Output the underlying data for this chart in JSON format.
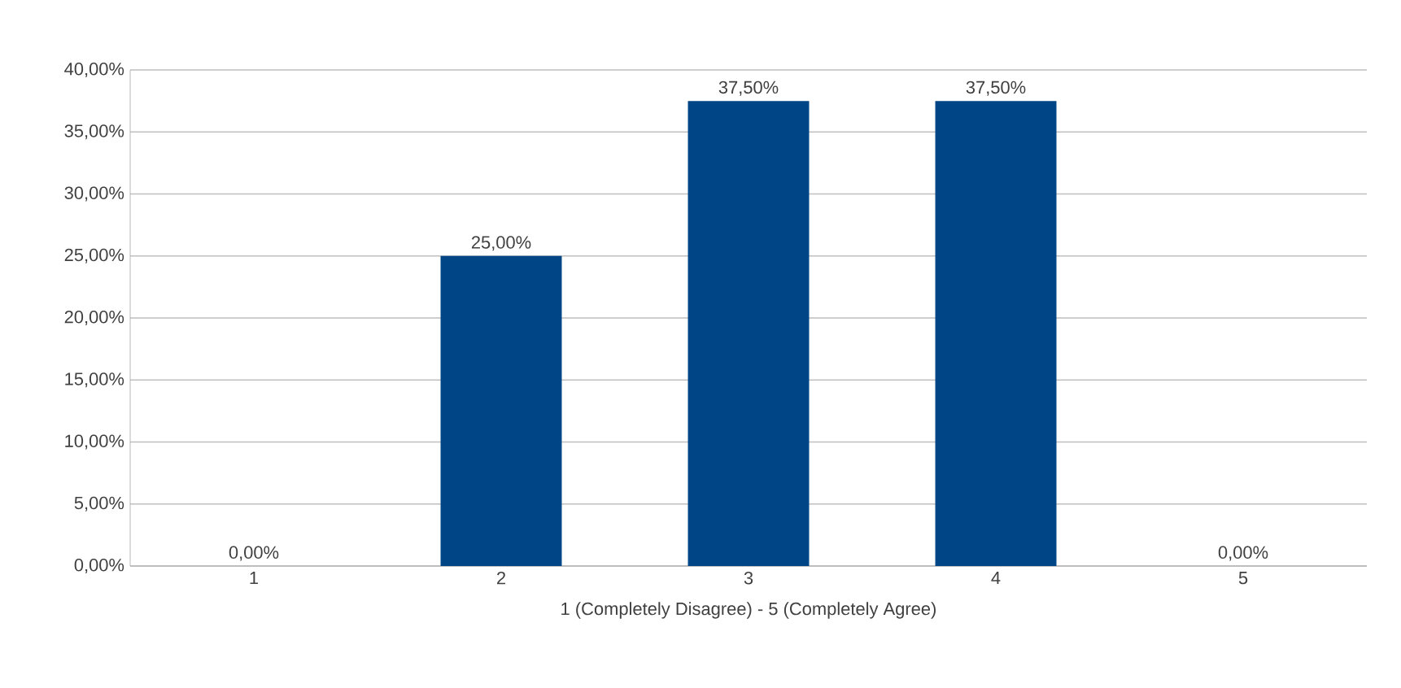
{
  "chart_data": {
    "type": "bar",
    "categories": [
      "1",
      "2",
      "3",
      "4",
      "5"
    ],
    "values": [
      0,
      25,
      37.5,
      37.5,
      0
    ],
    "value_labels": [
      "0,00%",
      "25,00%",
      "37,50%",
      "37,50%",
      "0,00%"
    ],
    "color": "#004586",
    "xlabel": "1 (Completely Disagree) - 5 (Completely Agree)",
    "ylim": [
      0,
      40
    ],
    "yticks": [
      {
        "value": 0,
        "label": "0,00%"
      },
      {
        "value": 5,
        "label": "5,00%"
      },
      {
        "value": 10,
        "label": "10,00%"
      },
      {
        "value": 15,
        "label": "15,00%"
      },
      {
        "value": 20,
        "label": "20,00%"
      },
      {
        "value": 25,
        "label": "25,00%"
      },
      {
        "value": 30,
        "label": "30,00%"
      },
      {
        "value": 35,
        "label": "35,00%"
      },
      {
        "value": 40,
        "label": "40,00%"
      }
    ],
    "grid": "y"
  }
}
